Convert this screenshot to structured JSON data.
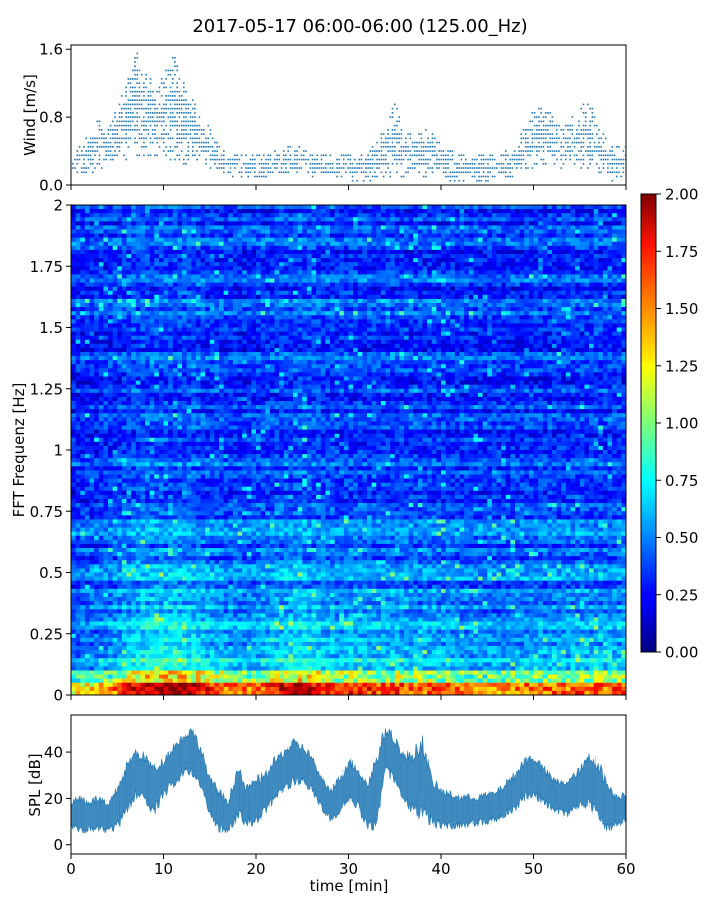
{
  "figure": {
    "title": "2017-05-17 06:00-06:00 (125.00_Hz)"
  },
  "chart_data": [
    {
      "type": "scatter",
      "ylabel": "Wind [m/s]",
      "xlim": [
        0,
        60
      ],
      "ylim": [
        0,
        1.65
      ],
      "xticks": [
        0,
        10,
        20,
        30,
        40,
        50,
        60
      ],
      "yticks": [
        "0.0",
        "0.8",
        "1.6"
      ],
      "ytick_values": [
        0,
        0.8,
        1.6
      ],
      "color": "#1f77b4",
      "envelope": {
        "t": [
          0,
          2,
          3,
          4,
          5,
          6,
          7,
          8,
          9,
          10,
          11,
          12,
          13,
          14,
          15,
          16,
          17,
          18,
          20,
          22,
          24,
          26,
          28,
          30,
          32,
          33,
          34,
          35,
          36,
          37,
          38,
          39,
          40,
          42,
          44,
          46,
          48,
          49,
          50,
          51,
          52,
          53,
          54,
          55,
          56,
          57,
          58,
          59,
          60
        ],
        "low": [
          0.15,
          0.15,
          0.15,
          0.2,
          0.25,
          0.3,
          0.3,
          0.3,
          0.3,
          0.3,
          0.3,
          0.25,
          0.25,
          0.25,
          0.2,
          0.15,
          0.1,
          0.1,
          0.1,
          0.1,
          0.15,
          0.1,
          0.1,
          0.05,
          0.05,
          0.05,
          0.1,
          0.1,
          0.1,
          0.1,
          0.1,
          0.1,
          0.05,
          0.05,
          0.05,
          0.05,
          0.1,
          0.15,
          0.2,
          0.25,
          0.25,
          0.2,
          0.2,
          0.2,
          0.2,
          0.15,
          0.05,
          0.05,
          0.1
        ],
        "high": [
          0.35,
          0.6,
          0.8,
          0.7,
          0.9,
          1.25,
          1.6,
          1.4,
          1.25,
          1.35,
          1.6,
          1.25,
          1.1,
          0.8,
          0.7,
          0.5,
          0.4,
          0.35,
          0.35,
          0.4,
          0.5,
          0.4,
          0.35,
          0.35,
          0.4,
          0.5,
          0.7,
          1.0,
          0.65,
          0.6,
          0.7,
          0.65,
          0.5,
          0.35,
          0.35,
          0.35,
          0.5,
          0.7,
          0.9,
          1.0,
          0.9,
          0.7,
          0.8,
          0.9,
          1.05,
          0.7,
          0.55,
          0.45,
          0.45
        ]
      }
    },
    {
      "type": "heatmap",
      "ylabel": "FFT Frequenz [Hz]",
      "xlim": [
        0,
        60
      ],
      "ylim": [
        0,
        2
      ],
      "yticks": [
        "0",
        "0.25",
        "0.5",
        "0.75",
        "1",
        "1.25",
        "1.5",
        "1.75",
        "2"
      ],
      "ytick_values": [
        0,
        0.25,
        0.5,
        0.75,
        1,
        1.25,
        1.5,
        1.75,
        2
      ],
      "colormap": "jet",
      "colorbar": {
        "vmin": 0,
        "vmax": 2,
        "ticks": [
          "0.00",
          "0.25",
          "0.50",
          "0.75",
          "1.00",
          "1.25",
          "1.50",
          "1.75",
          "2.00"
        ],
        "tick_values": [
          0,
          0.25,
          0.5,
          0.75,
          1,
          1.25,
          1.5,
          1.75,
          2
        ]
      },
      "activity": {
        "t": [
          0,
          3,
          5,
          7,
          9,
          11,
          13,
          15,
          17,
          19,
          21,
          23,
          25,
          27,
          29,
          31,
          33,
          35,
          37,
          39,
          41,
          43,
          45,
          47,
          49,
          51,
          53,
          55,
          57,
          60
        ],
        "level": [
          0.1,
          0.2,
          0.45,
          0.75,
          0.85,
          0.9,
          0.8,
          0.6,
          0.45,
          0.4,
          0.55,
          0.7,
          0.85,
          0.65,
          0.5,
          0.6,
          0.5,
          0.55,
          0.45,
          0.5,
          0.4,
          0.35,
          0.35,
          0.35,
          0.4,
          0.45,
          0.45,
          0.5,
          0.45,
          0.5
        ]
      }
    },
    {
      "type": "line",
      "ylabel": "SPL [dB]",
      "xlabel": "time [min]",
      "xlim": [
        0,
        60
      ],
      "ylim": [
        -4,
        56
      ],
      "xticks": [
        0,
        10,
        20,
        30,
        40,
        50,
        60
      ],
      "yticks": [
        "0",
        "20",
        "40"
      ],
      "ytick_values": [
        0,
        20,
        40
      ],
      "color": "#1f77b4",
      "envelope": {
        "t": [
          0,
          1,
          2,
          3,
          4,
          5,
          6,
          7,
          8,
          9,
          10,
          11,
          12,
          13,
          14,
          15,
          16,
          17,
          18,
          19,
          20,
          21,
          22,
          23,
          24,
          25,
          26,
          27,
          28,
          29,
          30,
          31,
          32,
          33,
          34,
          35,
          36,
          37,
          38,
          39,
          40,
          42,
          44,
          46,
          47,
          48,
          49,
          50,
          51,
          52,
          53,
          54,
          55,
          56,
          57,
          58,
          59,
          60
        ],
        "low": [
          6,
          4,
          5,
          5,
          4,
          6,
          12,
          20,
          17,
          12,
          20,
          24,
          28,
          30,
          24,
          12,
          5,
          5,
          10,
          8,
          8,
          12,
          18,
          22,
          25,
          26,
          22,
          15,
          10,
          12,
          18,
          15,
          5,
          5,
          30,
          26,
          18,
          12,
          10,
          8,
          6,
          7,
          8,
          9,
          12,
          14,
          18,
          20,
          17,
          14,
          12,
          12,
          15,
          15,
          10,
          5,
          7,
          9
        ],
        "high": [
          20,
          22,
          20,
          22,
          18,
          26,
          36,
          42,
          40,
          35,
          38,
          44,
          48,
          52,
          44,
          30,
          25,
          20,
          35,
          26,
          30,
          32,
          38,
          42,
          46,
          44,
          40,
          30,
          25,
          30,
          38,
          35,
          28,
          40,
          52,
          48,
          40,
          42,
          48,
          30,
          25,
          22,
          22,
          24,
          28,
          32,
          38,
          40,
          35,
          30,
          28,
          30,
          34,
          40,
          38,
          28,
          22,
          24
        ]
      }
    }
  ]
}
